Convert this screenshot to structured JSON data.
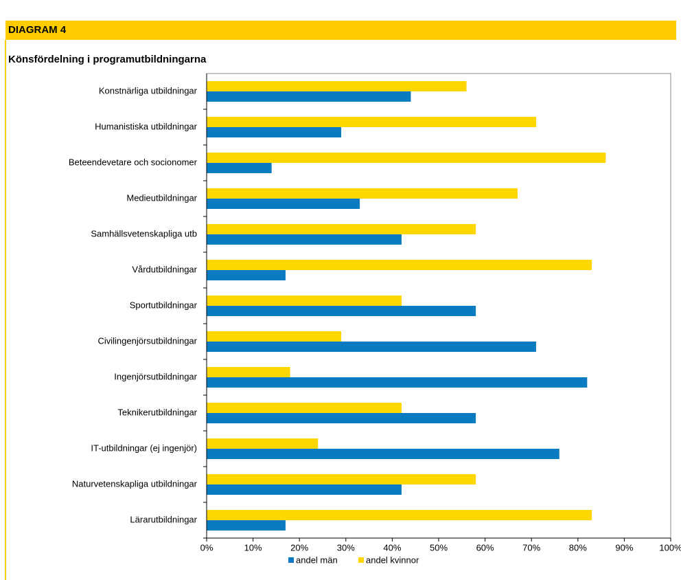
{
  "chart_data": {
    "type": "hbar",
    "title": "DIAGRAM 4",
    "subtitle": "Könsfördelning i programutbildningarna",
    "categories": [
      "Konstnärliga utbildningar",
      "Humanistiska utbildningar",
      "Beteendevetare och socionomer",
      "Medieutbildningar",
      "Samhällsvetenskapliga utb",
      "Vårdutbildningar",
      "Sportutbildningar",
      "Civilingenjörsutbildningar",
      "Ingenjörsutbildningar",
      "Teknikerutbildningar",
      "IT-utbildningar (ej ingenjör)",
      "Naturvetenskapliga utbildningar",
      "Lärarutbildningar"
    ],
    "series": [
      {
        "name": "andel män",
        "color": "#0a7bc1",
        "values": [
          44,
          29,
          14,
          33,
          42,
          17,
          58,
          71,
          82,
          58,
          76,
          42,
          17
        ]
      },
      {
        "name": "andel kvinnor",
        "color": "#ffd700",
        "values": [
          56,
          71,
          86,
          67,
          58,
          83,
          42,
          29,
          18,
          42,
          24,
          58,
          83
        ]
      }
    ],
    "xlim": [
      0,
      100
    ],
    "xticks": [
      {
        "value": 0,
        "label": "0%"
      },
      {
        "value": 10,
        "label": "10%"
      },
      {
        "value": 20,
        "label": "20%"
      },
      {
        "value": 30,
        "label": "30%"
      },
      {
        "value": 40,
        "label": "40%"
      },
      {
        "value": 50,
        "label": "50%"
      },
      {
        "value": 60,
        "label": "60%"
      },
      {
        "value": 70,
        "label": "70%"
      },
      {
        "value": 80,
        "label": "80%"
      },
      {
        "value": 90,
        "label": "90%"
      },
      {
        "value": 100,
        "label": "100%"
      }
    ],
    "legend": "bottom"
  }
}
